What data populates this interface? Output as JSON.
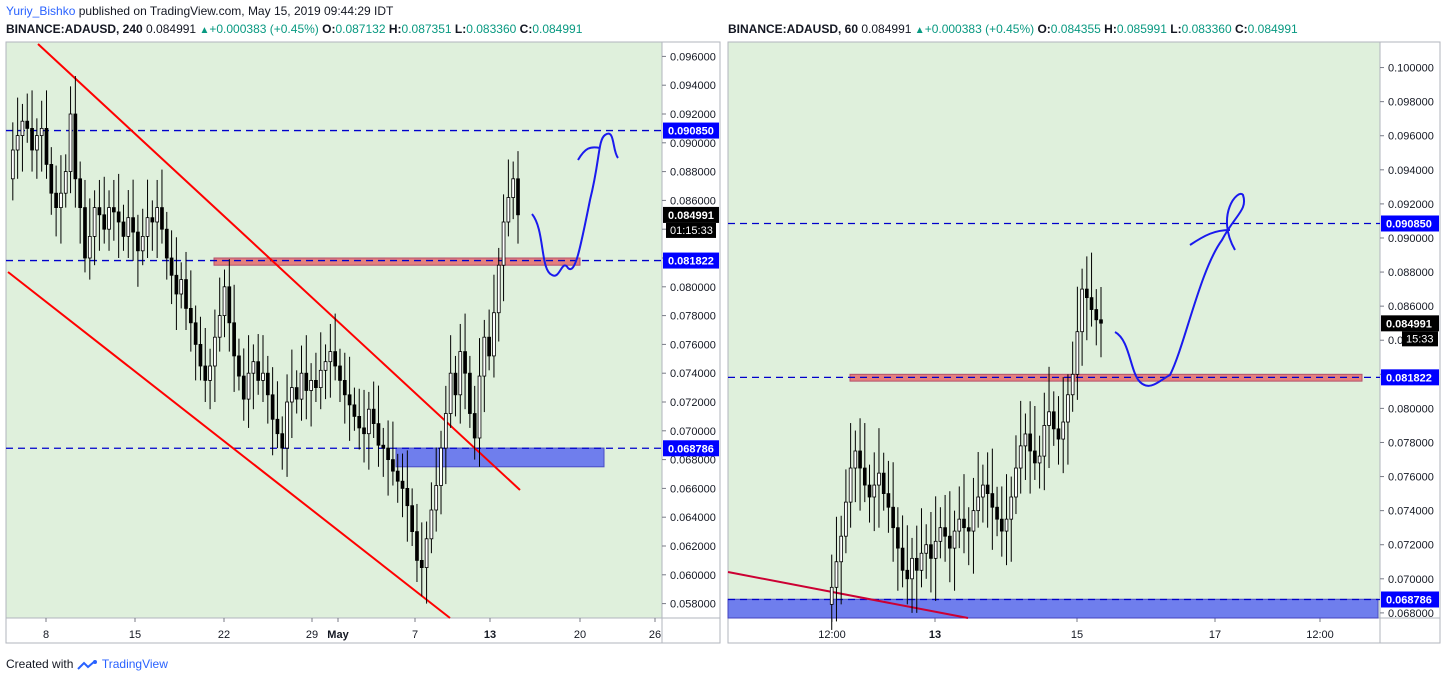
{
  "header": {
    "author": "Yuriy_Bishko",
    "published": "published on TradingView.com, May 15, 2019 09:44:29 IDT"
  },
  "footer": {
    "created_with": "Created with",
    "brand": "TradingView"
  },
  "colors": {
    "bg": "#dff0dc",
    "candle": "#000000",
    "trend": "#ff0000",
    "dashed": "#0000cc",
    "supply": "#e57373",
    "demand": "#5c6bf0",
    "path": "#1a1aee",
    "price_label": "#000000",
    "level_label": "#0000ff"
  },
  "chart_data": [
    {
      "type": "candlestick",
      "symbol": "BINANCE:ADAUSD",
      "interval": "240",
      "last": "0.084991",
      "change": "+0.000383 (+0.45%)",
      "open": "0.087132",
      "high": "0.087351",
      "low": "0.083360",
      "close": "0.084991",
      "countdown": "01:15:33",
      "ylim": [
        0.057,
        0.097
      ],
      "y_ticks": [
        "0.096000",
        "0.094000",
        "0.092000",
        "0.090000",
        "0.088000",
        "0.086000",
        "0.084000",
        "0.082000",
        "0.080000",
        "0.078000",
        "0.076000",
        "0.074000",
        "0.072000",
        "0.070000",
        "0.068000",
        "0.066000",
        "0.064000",
        "0.062000",
        "0.060000",
        "0.058000"
      ],
      "x_ticks": [
        "8",
        "15",
        "22",
        "29",
        "May",
        "7",
        "13",
        "20",
        "26"
      ],
      "levels": [
        "0.090850",
        "0.081822",
        "0.068786"
      ],
      "level_values": [
        0.09085,
        0.081822,
        0.068786
      ],
      "supply_zone": {
        "from": 0.0815,
        "to": 0.082
      },
      "demand_zone": {
        "from": 0.0675,
        "to": 0.0688
      },
      "series": [
        0.0875,
        0.0895,
        0.0905,
        0.0915,
        0.091,
        0.0895,
        0.0905,
        0.091,
        0.0885,
        0.0865,
        0.0855,
        0.0865,
        0.088,
        0.092,
        0.0875,
        0.0855,
        0.082,
        0.0835,
        0.0855,
        0.085,
        0.084,
        0.0855,
        0.0852,
        0.0845,
        0.0835,
        0.0848,
        0.0838,
        0.0825,
        0.0835,
        0.0848,
        0.0845,
        0.0855,
        0.084,
        0.082,
        0.0808,
        0.0795,
        0.0805,
        0.0785,
        0.0775,
        0.076,
        0.0745,
        0.0735,
        0.0745,
        0.0765,
        0.078,
        0.08,
        0.0775,
        0.0752,
        0.0738,
        0.0722,
        0.074,
        0.0748,
        0.0735,
        0.074,
        0.0725,
        0.0708,
        0.0698,
        0.0688,
        0.072,
        0.073,
        0.0722,
        0.074,
        0.0728,
        0.0735,
        0.073,
        0.0742,
        0.0748,
        0.0755,
        0.0745,
        0.0735,
        0.0725,
        0.0718,
        0.071,
        0.0702,
        0.0698,
        0.0715,
        0.0705,
        0.069,
        0.0688,
        0.068,
        0.0672,
        0.0665,
        0.066,
        0.0648,
        0.063,
        0.061,
        0.0605,
        0.0625,
        0.0645,
        0.0662,
        0.0688,
        0.0712,
        0.074,
        0.0725,
        0.0755,
        0.074,
        0.0712,
        0.0695,
        0.0738,
        0.0765,
        0.0752,
        0.0782,
        0.0815,
        0.0845,
        0.0862,
        0.0875,
        0.085
      ]
    },
    {
      "type": "candlestick",
      "symbol": "BINANCE:ADAUSD",
      "interval": "60",
      "last": "0.084991",
      "change": "+0.000383 (+0.45%)",
      "open": "0.084355",
      "high": "0.085991",
      "low": "0.083360",
      "close": "0.084991",
      "countdown": "15:33",
      "ylim": [
        0.0677,
        0.1015
      ],
      "y_ticks": [
        "0.100000",
        "0.098000",
        "0.096000",
        "0.094000",
        "0.092000",
        "0.090000",
        "0.088000",
        "0.086000",
        "0.084000",
        "0.082000",
        "0.080000",
        "0.078000",
        "0.076000",
        "0.074000",
        "0.072000",
        "0.070000",
        "0.068000"
      ],
      "x_ticks": [
        "12:00",
        "13",
        "15",
        "17",
        "12:00"
      ],
      "levels": [
        "0.090850",
        "0.081822",
        "0.068786"
      ],
      "level_values": [
        0.09085,
        0.081822,
        0.068786
      ],
      "supply_zone": {
        "from": 0.0816,
        "to": 0.082
      },
      "demand_zone": {
        "from": 0.0677,
        "to": 0.0688
      },
      "series": [
        0.0685,
        0.0695,
        0.071,
        0.0725,
        0.0745,
        0.0765,
        0.0775,
        0.0765,
        0.0755,
        0.0748,
        0.0755,
        0.0762,
        0.075,
        0.0742,
        0.073,
        0.0718,
        0.0705,
        0.07,
        0.0712,
        0.0705,
        0.0715,
        0.072,
        0.0712,
        0.0722,
        0.073,
        0.0725,
        0.0718,
        0.0728,
        0.0735,
        0.073,
        0.0728,
        0.074,
        0.0748,
        0.0755,
        0.075,
        0.0742,
        0.0735,
        0.0728,
        0.0735,
        0.0748,
        0.0765,
        0.0778,
        0.0785,
        0.0775,
        0.0768,
        0.0772,
        0.079,
        0.0798,
        0.0788,
        0.0782,
        0.0792,
        0.0808,
        0.082,
        0.0845,
        0.087,
        0.0865,
        0.0858,
        0.0852,
        0.085
      ]
    }
  ]
}
